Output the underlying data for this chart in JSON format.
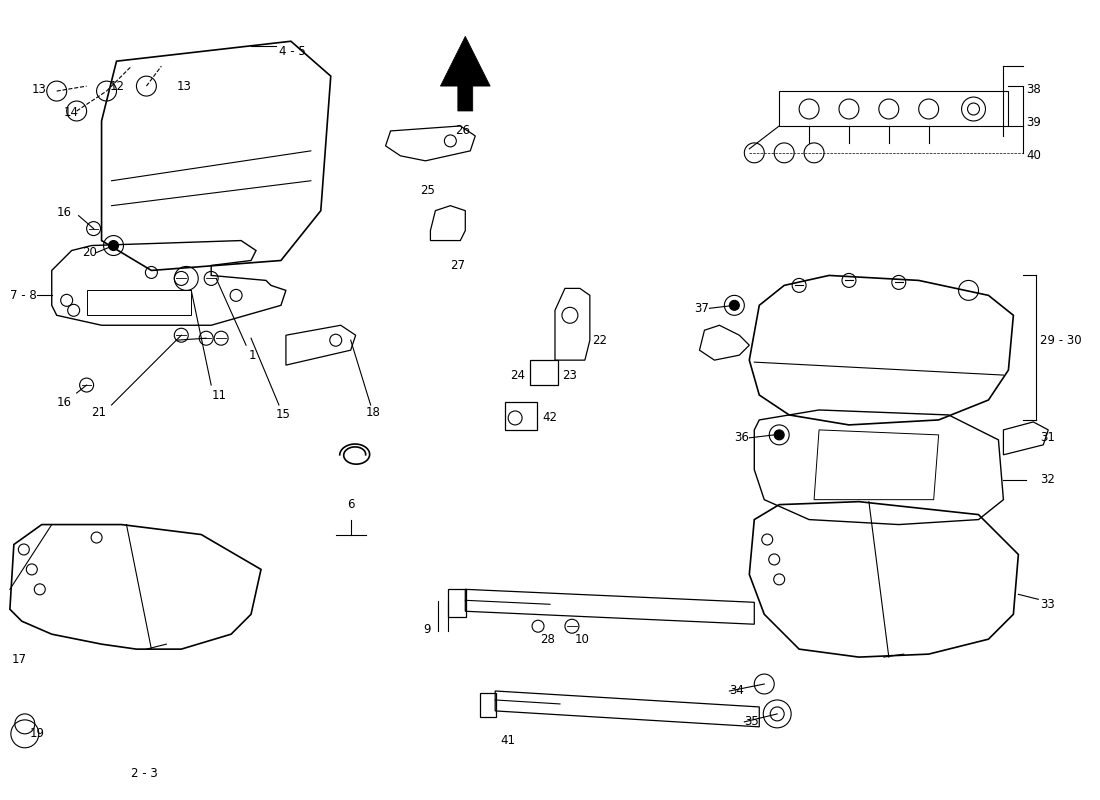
{
  "bg_color": "#ffffff",
  "line_color": "#000000",
  "text_color": "#000000"
}
